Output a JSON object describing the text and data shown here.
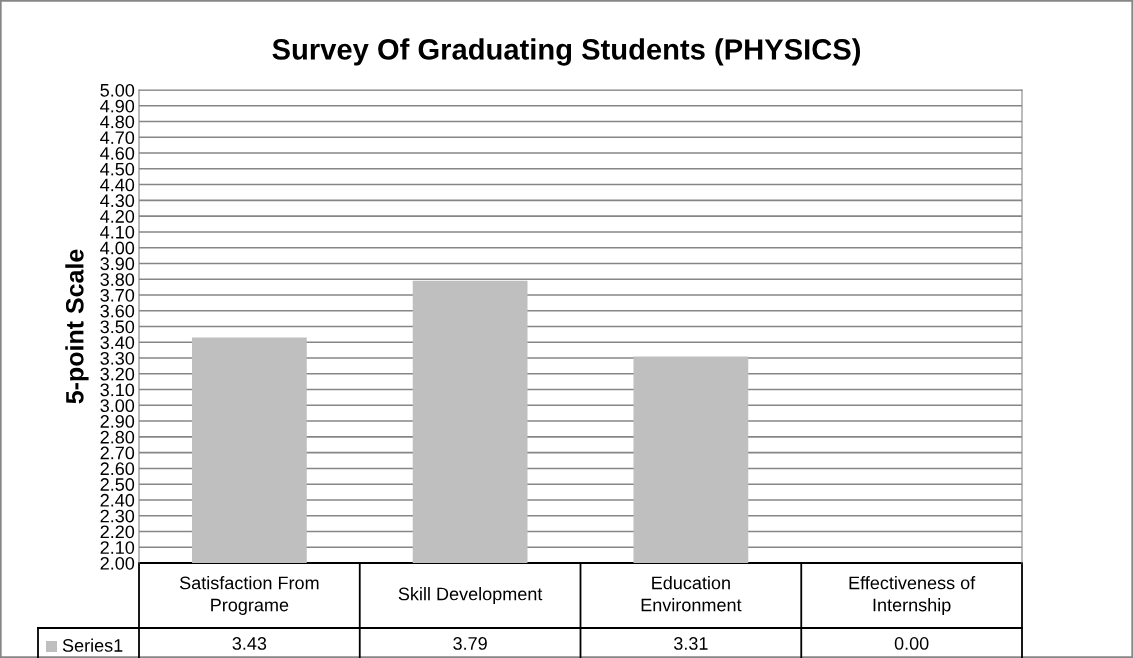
{
  "chart_data": {
    "type": "bar",
    "title": "Survey Of Graduating Students (PHYSICS)",
    "ylabel": "5-point Scale",
    "categories": [
      "Satisfaction From\nPrograme",
      "Skill Development",
      "Education\nEnvironment",
      "Effectiveness of\nInternship"
    ],
    "series": [
      {
        "name": "Series1",
        "color": "#bfbfbf",
        "values": [
          3.43,
          3.79,
          3.31,
          null
        ],
        "value_labels": [
          "3.43",
          "3.79",
          "3.31",
          "0.00"
        ]
      }
    ],
    "ylim": [
      2.0,
      5.0
    ],
    "yticks": [
      {
        "value": 2.0,
        "label": "2.00"
      },
      {
        "value": 2.1,
        "label": "2.10"
      },
      {
        "value": 2.2,
        "label": "2.20"
      },
      {
        "value": 2.3,
        "label": "2.30"
      },
      {
        "value": 2.4,
        "label": "2.40"
      },
      {
        "value": 2.5,
        "label": "2.50"
      },
      {
        "value": 2.6,
        "label": "2.60"
      },
      {
        "value": 2.7,
        "label": "2.70"
      },
      {
        "value": 2.8,
        "label": "2.80"
      },
      {
        "value": 2.9,
        "label": "2.90"
      },
      {
        "value": 3.0,
        "label": "3.00"
      },
      {
        "value": 3.1,
        "label": "3.10"
      },
      {
        "value": 3.2,
        "label": "3.20"
      },
      {
        "value": 3.3,
        "label": "3.30"
      },
      {
        "value": 3.4,
        "label": "3.40"
      },
      {
        "value": 3.5,
        "label": "3.50"
      },
      {
        "value": 3.6,
        "label": "3.60"
      },
      {
        "value": 3.7,
        "label": "3.70"
      },
      {
        "value": 3.8,
        "label": "3.80"
      },
      {
        "value": 3.9,
        "label": "3.90"
      },
      {
        "value": 4.0,
        "label": "4.00"
      },
      {
        "value": 4.1,
        "label": "4.10"
      },
      {
        "value": 4.2,
        "label": "4.20"
      },
      {
        "value": 4.3,
        "label": "4.30"
      },
      {
        "value": 4.4,
        "label": "4.40"
      },
      {
        "value": 4.5,
        "label": "4.50"
      },
      {
        "value": 4.6,
        "label": "4.60"
      },
      {
        "value": 4.7,
        "label": "4.70"
      },
      {
        "value": 4.8,
        "label": "4.80"
      },
      {
        "value": 4.9,
        "label": "4.90"
      },
      {
        "value": 5.0,
        "label": "5.00"
      }
    ],
    "grid": "y",
    "legend": "bottom left"
  }
}
